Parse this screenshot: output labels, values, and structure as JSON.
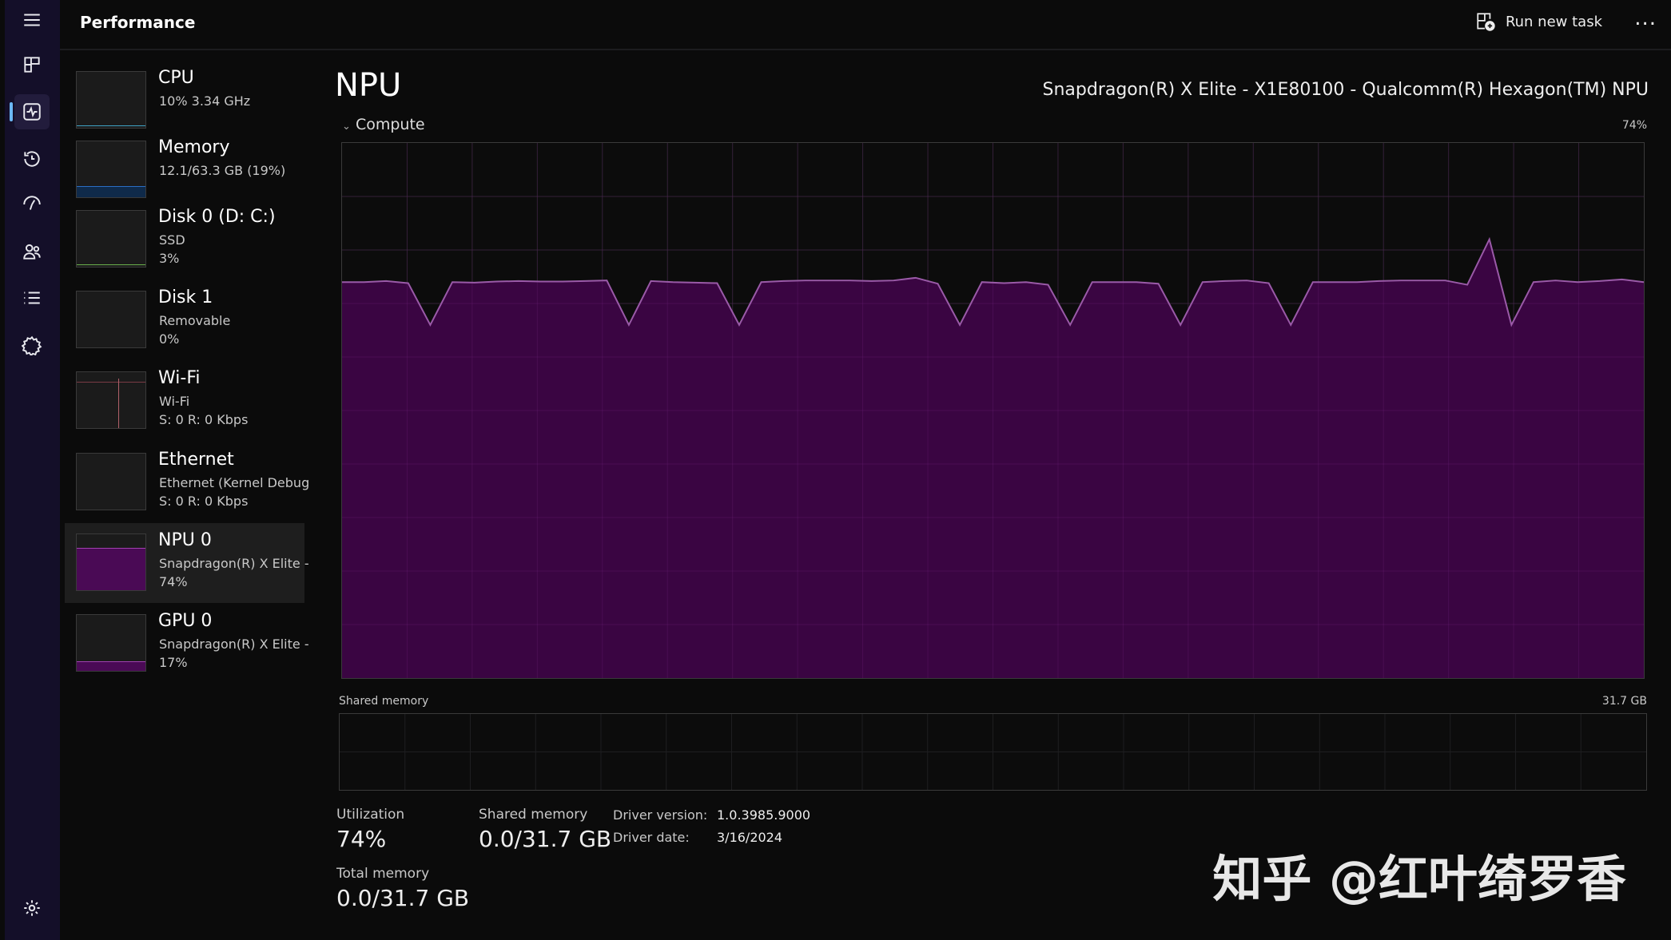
{
  "app": {
    "title": "Performance",
    "run_new_task": "Run new task",
    "more": "..."
  },
  "nav": [
    "menu-icon",
    "processes-icon",
    "performance-icon",
    "app-history-icon",
    "startup-apps-icon",
    "users-icon",
    "details-icon",
    "services-icon",
    "settings-icon"
  ],
  "sidebar": {
    "items": [
      {
        "name": "CPU",
        "line1": "10%  3.34 GHz",
        "line2": "",
        "color": "#3fa3c6"
      },
      {
        "name": "Memory",
        "line1": "12.1/63.3 GB (19%)",
        "line2": "",
        "color": "#2a6dc4"
      },
      {
        "name": "Disk 0 (D: C:)",
        "line1": "SSD",
        "line2": "3%",
        "color": "#6ab04c"
      },
      {
        "name": "Disk 1",
        "line1": "Removable",
        "line2": "0%",
        "color": "#6ab04c"
      },
      {
        "name": "Wi-Fi",
        "line1": "Wi-Fi",
        "line2": "S: 0  R: 0 Kbps",
        "color": "#b0606a"
      },
      {
        "name": "Ethernet",
        "line1": "Ethernet (Kernel Debug",
        "line2": "S: 0  R: 0 Kbps",
        "color": "#b0606a"
      },
      {
        "name": "NPU 0",
        "line1": "Snapdragon(R) X Elite -",
        "line2": "74%",
        "color": "#a040b0",
        "selected": true
      },
      {
        "name": "GPU 0",
        "line1": "Snapdragon(R) X Elite -",
        "line2": "17%",
        "color": "#a040b0"
      }
    ]
  },
  "main": {
    "title": "NPU",
    "model": "Snapdragon(R) X Elite - X1E80100 - Qualcomm(R) Hexagon(TM) NPU",
    "compute_label": "Compute",
    "compute_max": "74%",
    "shared_label": "Shared memory",
    "shared_max": "31.7 GB",
    "stats": {
      "utilization_label": "Utilization",
      "utilization": "74%",
      "shared_memory_label": "Shared memory",
      "shared_memory": "0.0/31.7 GB",
      "total_memory_label": "Total memory",
      "total_memory": "0.0/31.7 GB",
      "driver_version_label": "Driver version:",
      "driver_version": "1.0.3985.9000",
      "driver_date_label": "Driver date:",
      "driver_date": "3/16/2024"
    }
  },
  "watermark": "知乎 @红叶绮罗香",
  "chart_data": {
    "type": "area",
    "title": "Compute",
    "ylim": [
      0,
      100
    ],
    "grid": true,
    "fill_color": "#3a0542",
    "line_color": "#9a5aa8",
    "values": [
      74,
      74,
      74.2,
      73.8,
      66,
      74,
      73.9,
      74.1,
      74.2,
      74.1,
      74.1,
      74.2,
      74.3,
      66,
      74.2,
      74,
      73.9,
      73.8,
      66,
      74,
      74.2,
      74.3,
      74.3,
      74.3,
      74.2,
      74.3,
      74.8,
      73.7,
      66,
      74,
      73.8,
      74,
      73.5,
      66,
      74,
      74,
      74,
      73.7,
      66,
      74,
      74.2,
      74.3,
      73.8,
      66,
      74,
      74,
      74,
      74.2,
      74.3,
      74.3,
      74.3,
      73.5,
      82,
      66,
      74,
      74.3,
      74,
      74.2,
      74.5,
      74
    ],
    "shared_memory_values": [
      0
    ]
  }
}
